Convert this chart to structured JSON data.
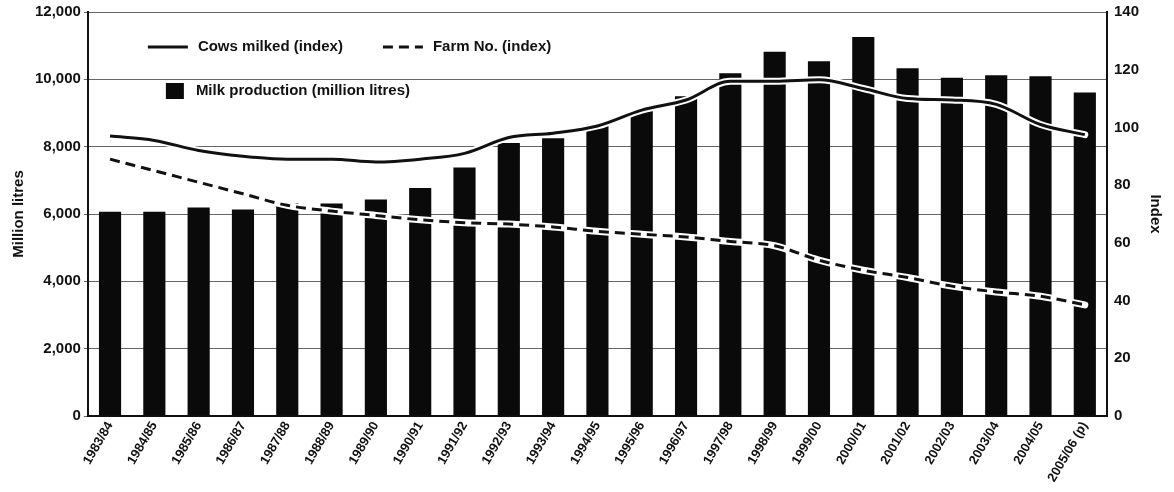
{
  "chart_data": {
    "type": "bar",
    "xlabel": null,
    "ylabel": "Million litres",
    "y2label": "Index",
    "categories": [
      "1983/84",
      "1984/85",
      "1985/86",
      "1986/87",
      "1987/88",
      "1988/89",
      "1989/90",
      "1990/91",
      "1991/92",
      "1992/93",
      "1993/94",
      "1994/95",
      "1995/96",
      "1996/97",
      "1997/98",
      "1998/99",
      "1999/00",
      "2000/01",
      "2001/02",
      "2002/03",
      "2003/04",
      "2004/05",
      "2005/06 (p)"
    ],
    "series": [
      {
        "name": "Cows milked (index)",
        "type": "line",
        "axis": "y2",
        "color": "#111111",
        "line_style": "solid",
        "values": [
          97,
          95.5,
          92,
          90,
          89,
          89,
          88,
          89,
          91,
          96.5,
          98,
          100.5,
          106,
          109.5,
          116,
          116,
          116.5,
          113.5,
          110,
          109.5,
          108,
          101,
          97.5
        ]
      },
      {
        "name": "Farm No. (index)",
        "type": "line",
        "axis": "y2",
        "color": "#111111",
        "line_style": "dashed",
        "values": [
          89,
          85,
          81,
          77,
          73,
          71,
          69.5,
          68,
          67,
          66.5,
          65.5,
          64,
          63,
          62,
          60.5,
          59,
          54,
          50.5,
          48,
          45,
          43,
          41.5,
          38.5
        ]
      },
      {
        "name": "Milk production (million litres)",
        "color": "#0a0a0a",
        "values": [
          6070,
          6070,
          6190,
          6130,
          6330,
          6310,
          6430,
          6770,
          7380,
          8110,
          8250,
          8650,
          9060,
          9500,
          10180,
          10820,
          10540,
          11260,
          10330,
          10050,
          10120,
          10090,
          9610
        ]
      }
    ],
    "ylim": [
      0,
      12000
    ],
    "yticks": [
      {
        "value": 0,
        "label": "0"
      },
      {
        "value": 2000,
        "label": "2,000"
      },
      {
        "value": 4000,
        "label": "4,000"
      },
      {
        "value": 6000,
        "label": "6,000"
      },
      {
        "value": 8000,
        "label": "8,000"
      },
      {
        "value": 10000,
        "label": "10,000"
      },
      {
        "value": 12000,
        "label": "12,000"
      }
    ],
    "y2lim": [
      0,
      140
    ],
    "y2ticks": [
      0,
      20,
      40,
      60,
      80,
      100,
      120,
      140
    ],
    "grid": "y",
    "legend": "top left",
    "marker": "none"
  }
}
